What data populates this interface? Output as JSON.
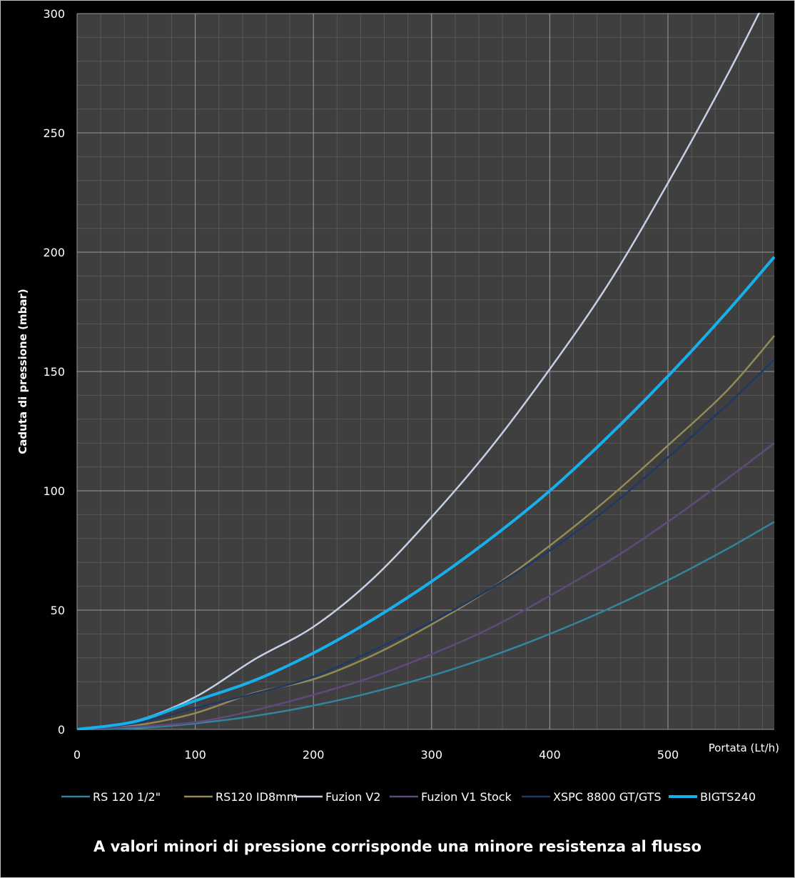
{
  "chart_data": {
    "type": "line",
    "title": "",
    "xlabel": "Portata (Lt/h)",
    "ylabel": "Caduta di pressione (mbar)",
    "xlim": [
      0,
      590
    ],
    "ylim": [
      0,
      300
    ],
    "x_ticks": [
      "0",
      "100",
      "200",
      "300",
      "400",
      "500"
    ],
    "y_ticks": [
      "0",
      "50",
      "100",
      "150",
      "200",
      "250",
      "300"
    ],
    "grid": true,
    "legend_position": "bottom",
    "x": [
      0,
      50,
      100,
      150,
      200,
      250,
      300,
      350,
      400,
      450,
      500,
      550,
      590
    ],
    "series": [
      {
        "name": "RS 120 1/2\"",
        "color": "#31859c",
        "width": 2.5,
        "values": [
          0,
          0.5,
          2.5,
          5.6,
          10,
          15.6,
          22.5,
          30.6,
          40,
          50.6,
          62.5,
          75.6,
          87
        ]
      },
      {
        "name": "RS120 ID8mm",
        "color": "#948a54",
        "width": 2.5,
        "values": [
          0,
          1.7,
          6.8,
          15.3,
          21,
          31,
          44,
          59,
          77,
          97,
          119,
          142,
          165
        ]
      },
      {
        "name": "Fuzion V2",
        "color": "#c5d0e6",
        "width": 2.5,
        "values": [
          0,
          3.6,
          13.6,
          29.3,
          43,
          63,
          89,
          118,
          151,
          187,
          229,
          274,
          313
        ]
      },
      {
        "name": "Fuzion V1 Stock",
        "color": "#604a7b",
        "width": 2.5,
        "values": [
          0,
          1.2,
          3,
          8,
          14.5,
          22,
          31.5,
          42.5,
          56,
          70.5,
          87,
          105,
          120
        ]
      },
      {
        "name": "XSPC 8800 GT/GTS",
        "color": "#1f3864",
        "width": 2.5,
        "values": [
          0,
          2.6,
          9,
          15,
          22,
          33,
          45,
          59,
          75,
          93,
          114,
          136,
          155
        ]
      },
      {
        "name": "BIGTS240",
        "color": "#17b0ed",
        "width": 4,
        "values": [
          0,
          3.4,
          12,
          20.5,
          32,
          46,
          62,
          80,
          100,
          123,
          148,
          175,
          198
        ]
      }
    ]
  },
  "caption": "A valori minori di pressione corrisponde una minore resistenza al flusso"
}
